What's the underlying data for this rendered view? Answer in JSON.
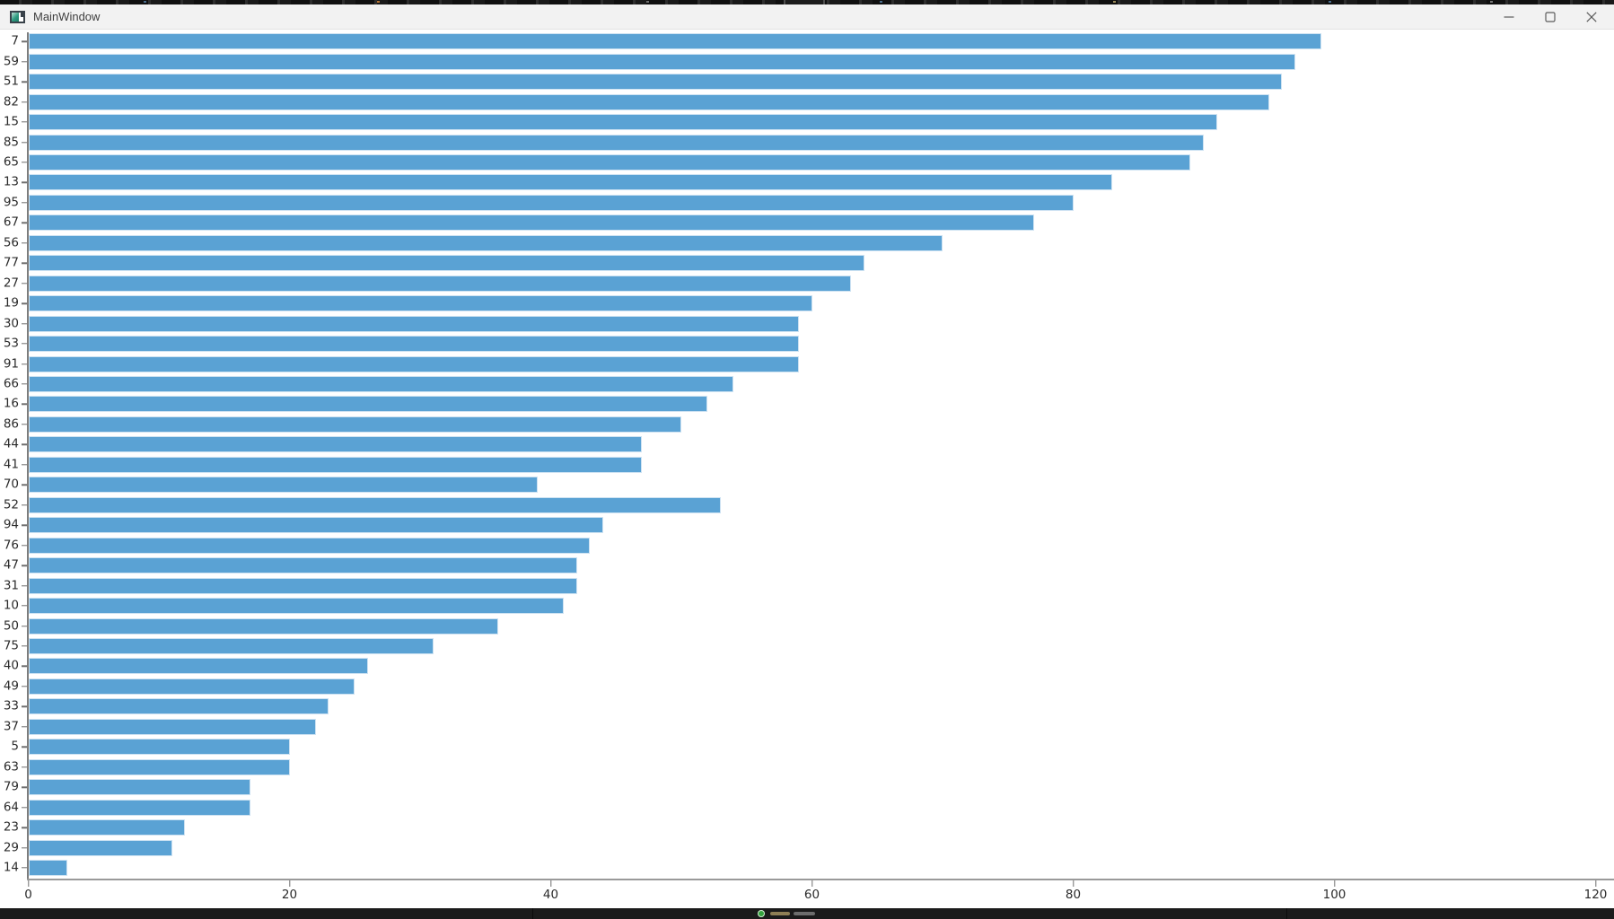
{
  "window": {
    "title": "MainWindow",
    "controls": {
      "minimize_label": "Minimize",
      "maximize_label": "Maximize",
      "close_label": "Close"
    }
  },
  "chart_data": {
    "type": "bar",
    "orientation": "horizontal",
    "title": "",
    "xlabel": "",
    "ylabel": "",
    "xlim": [
      0,
      120
    ],
    "x_ticks": [
      0,
      20,
      40,
      60,
      80,
      100,
      120
    ],
    "grid": false,
    "legend": "none",
    "bar_color": "#5aa2d4",
    "bar_edge_color": "#cde2f2",
    "axis_color": "#6f6f6f",
    "tick_label_color": "#2b2b2b",
    "background": "#ffffff",
    "categories": [
      "7",
      "59",
      "51",
      "82",
      "15",
      "85",
      "65",
      "13",
      "95",
      "67",
      "56",
      "77",
      "27",
      "19",
      "30",
      "53",
      "91",
      "66",
      "16",
      "86",
      "44",
      "41",
      "70",
      "52",
      "94",
      "76",
      "47",
      "31",
      "10",
      "50",
      "75",
      "40",
      "49",
      "33",
      "37",
      "5",
      "63",
      "79",
      "64",
      "23",
      "29",
      "14"
    ],
    "values": [
      99,
      97,
      96,
      95,
      91,
      90,
      89,
      83,
      80,
      77,
      70,
      64,
      63,
      60,
      59,
      59,
      59,
      54,
      52,
      50,
      47,
      47,
      39,
      53,
      44,
      43,
      42,
      42,
      41,
      36,
      31,
      26,
      25,
      23,
      22,
      20,
      20,
      17,
      17,
      12,
      11,
      3
    ]
  }
}
